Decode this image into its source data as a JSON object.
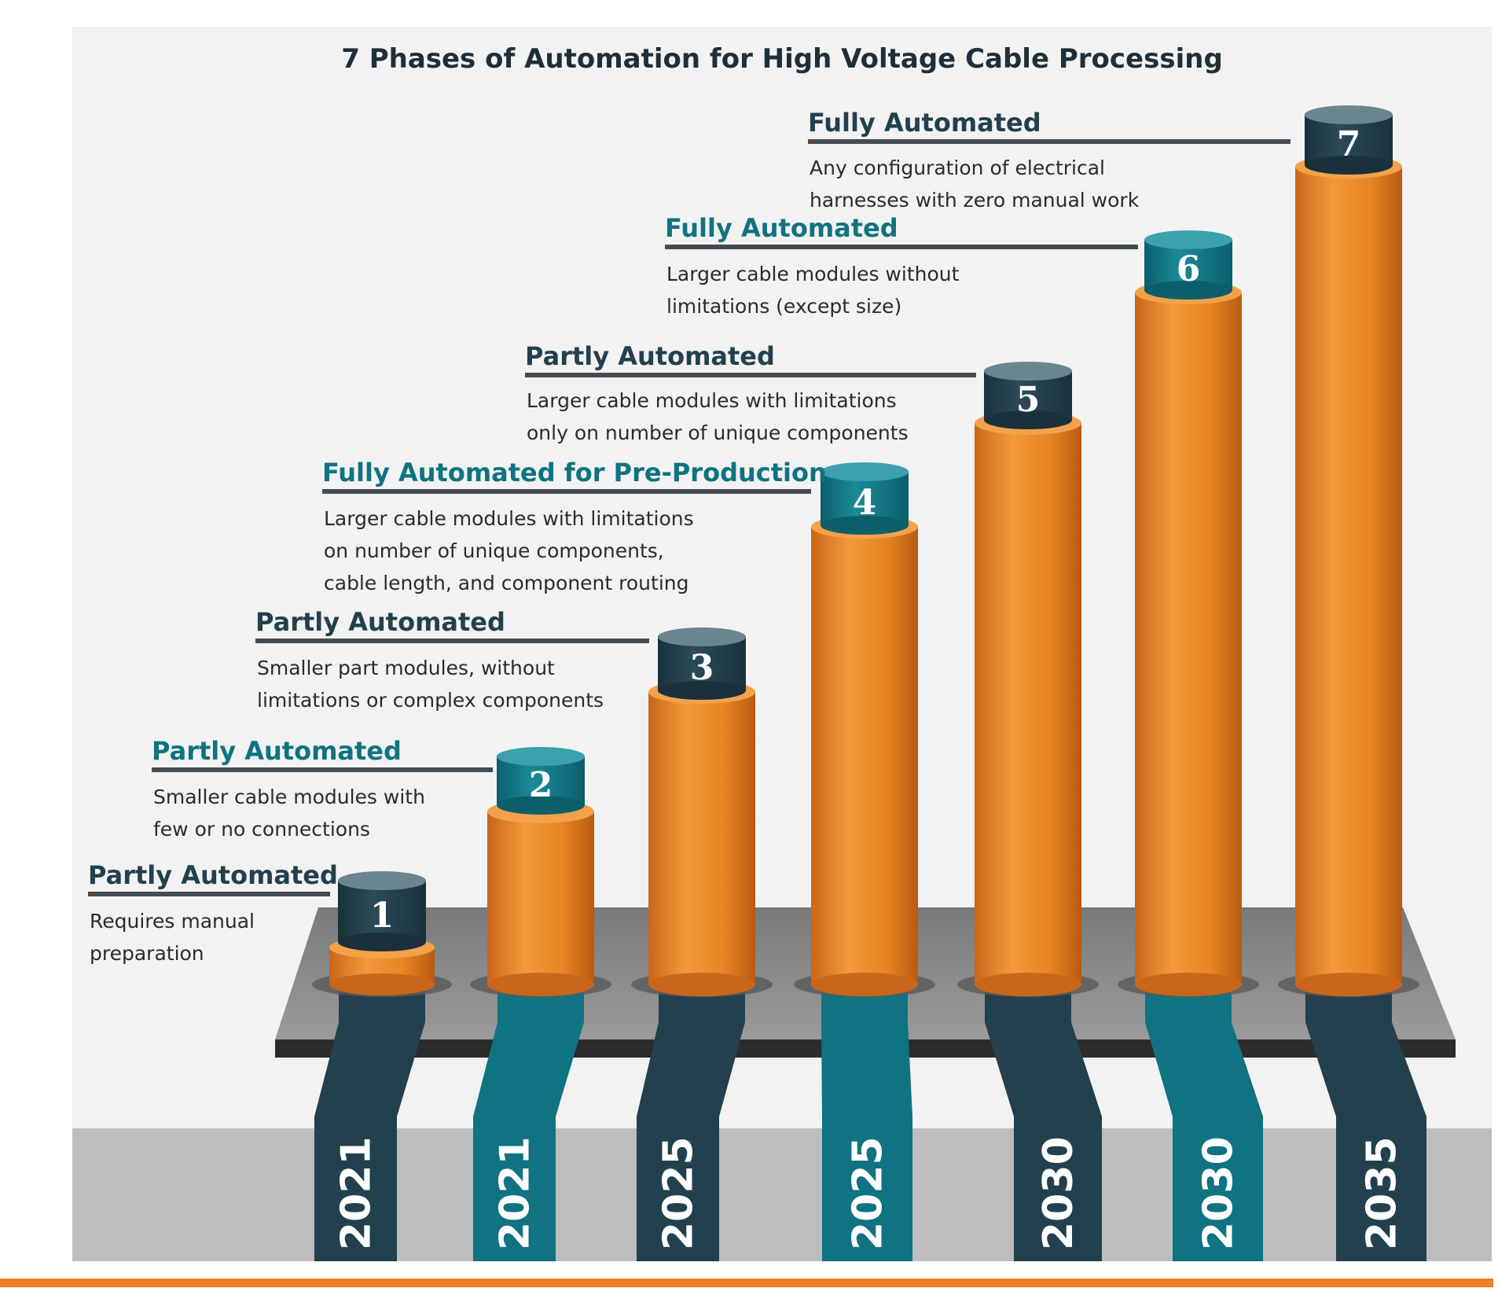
{
  "title": "7 Phases of Automation for High Voltage Cable Processing",
  "colors": {
    "navy": "#22404e",
    "teal": "#0f7381",
    "orange": "#e88424",
    "accent_line": "#ef7d22"
  },
  "phases": [
    {
      "number": "1",
      "heading": "Partly Automated",
      "heading_color": "navy",
      "description": [
        "Requires manual",
        "preparation"
      ],
      "year": "2021"
    },
    {
      "number": "2",
      "heading": "Partly Automated",
      "heading_color": "teal",
      "description": [
        "Smaller cable modules with",
        "few or no connections"
      ],
      "year": "2021"
    },
    {
      "number": "3",
      "heading": "Partly Automated",
      "heading_color": "navy",
      "description": [
        "Smaller part modules, without",
        "limitations or complex components"
      ],
      "year": "2025"
    },
    {
      "number": "4",
      "heading": "Fully Automated for Pre-Production",
      "heading_color": "teal",
      "description": [
        "Larger cable modules with limitations",
        "on number of unique components,",
        "cable length, and component routing"
      ],
      "year": "2025"
    },
    {
      "number": "5",
      "heading": "Partly Automated",
      "heading_color": "navy",
      "description": [
        "Larger cable modules with limitations",
        "only on number of unique components"
      ],
      "year": "2030"
    },
    {
      "number": "6",
      "heading": "Fully Automated",
      "heading_color": "teal",
      "description": [
        "Larger cable modules without",
        "limitations (except size)"
      ],
      "year": "2030"
    },
    {
      "number": "7",
      "heading": "Fully Automated",
      "heading_color": "navy",
      "description": [
        "Any configuration of electrical",
        "harnesses with zero manual work"
      ],
      "year": "2035"
    }
  ]
}
